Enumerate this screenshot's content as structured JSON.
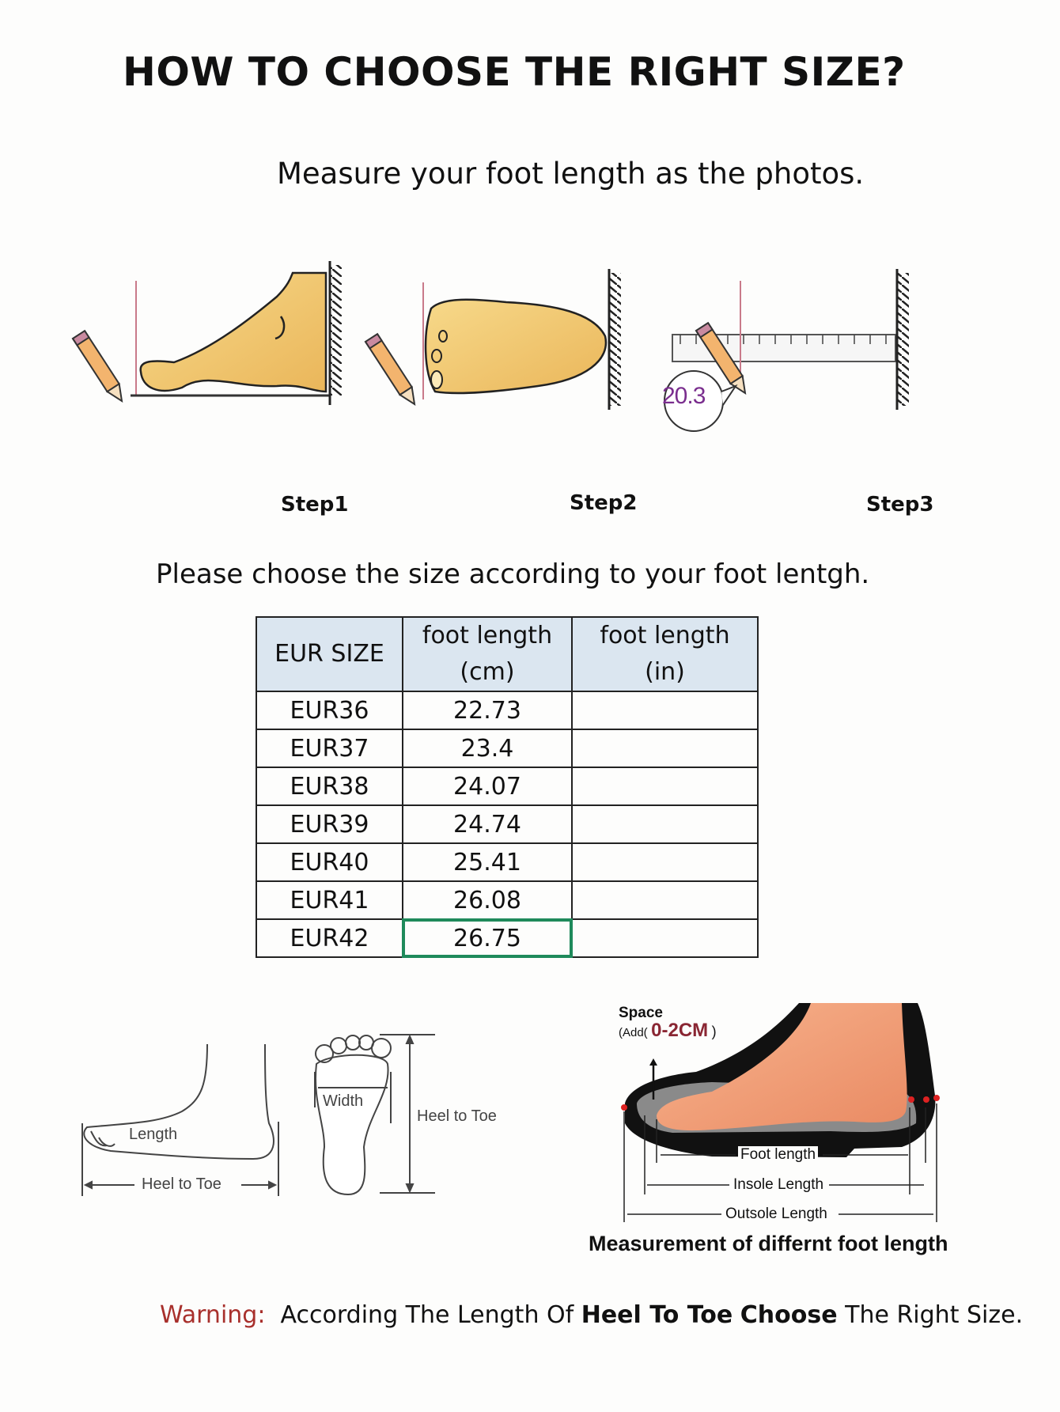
{
  "title": "HOW TO CHOOSE THE RIGHT SIZE?",
  "subtitle": "Measure your foot length as the photos.",
  "steps": [
    "Step1",
    "Step2",
    "Step3"
  ],
  "step3_reading": "20.3",
  "choose_text": "Please choose the size according to your foot lentgh.",
  "table": {
    "headers": [
      "EUR SIZE",
      "foot length",
      "(cm)",
      "foot length",
      "(in)"
    ],
    "rows": [
      {
        "size": "EUR36",
        "cm": "22.73",
        "in": ""
      },
      {
        "size": "EUR37",
        "cm": "23.4",
        "in": ""
      },
      {
        "size": "EUR38",
        "cm": "24.07",
        "in": ""
      },
      {
        "size": "EUR39",
        "cm": "24.74",
        "in": ""
      },
      {
        "size": "EUR40",
        "cm": "25.41",
        "in": ""
      },
      {
        "size": "EUR41",
        "cm": "26.08",
        "in": ""
      },
      {
        "size": "EUR42",
        "cm": "26.75",
        "in": ""
      }
    ],
    "selected_cell_color": "#1f8a5b",
    "header_bg": "#dbe6f0"
  },
  "diagram_left": {
    "length": "Length",
    "heel_to_toe": "Heel to Toe"
  },
  "diagram_sole": {
    "width": "Width",
    "heel_to_toe": "Heel to Toe"
  },
  "diagram_shoe": {
    "space": "Space",
    "add_prefix": "(Add(",
    "add_value": "0-2CM",
    "add_suffix": ")",
    "foot_length": "Foot length",
    "insole_length": "Insole Length",
    "outsole_length": "Outsole Length",
    "caption": "Measurement of differnt foot length"
  },
  "warning": {
    "label": "Warning:",
    "part1": "According The Length Of",
    "bold1": "Heel To Toe",
    "bold2": "Choose",
    "part2": "The Right Size.",
    "label_color": "#a8302c"
  }
}
